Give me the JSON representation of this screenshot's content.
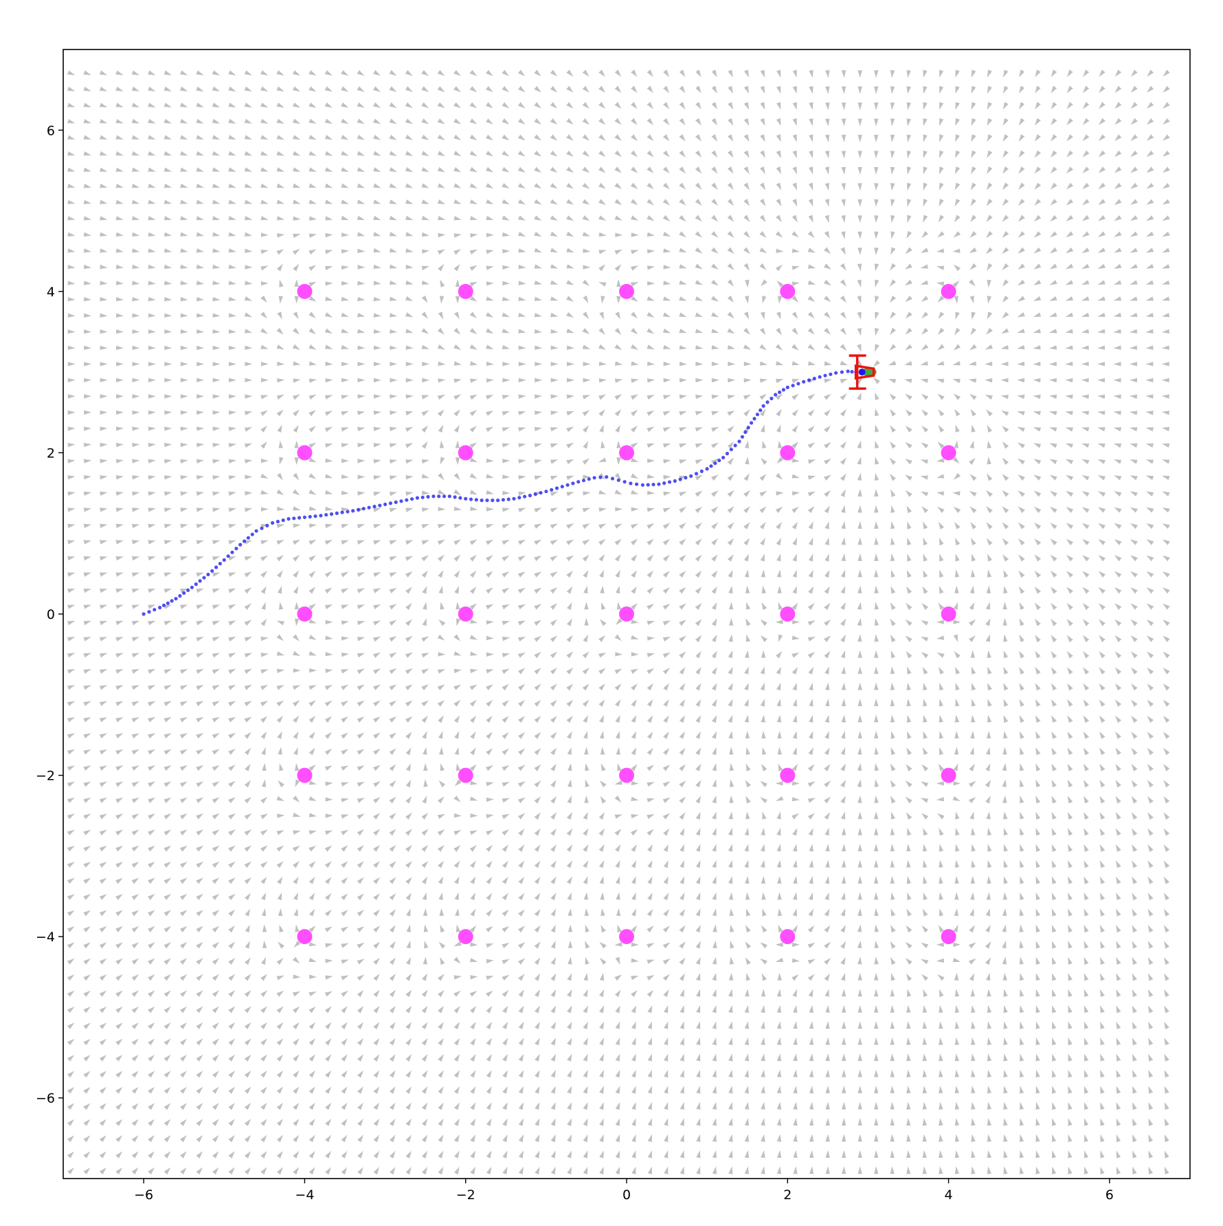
{
  "chart_data": {
    "type": "scatter",
    "title": "",
    "xlabel": "",
    "ylabel": "",
    "xlim": [
      -7,
      7
    ],
    "ylim": [
      -7,
      7
    ],
    "grid": false,
    "x_ticks": [
      -6,
      -4,
      -2,
      0,
      2,
      4,
      6
    ],
    "y_ticks": [
      -6,
      -4,
      -2,
      0,
      2,
      4,
      6
    ],
    "x_tick_labels": [
      "−6",
      "−4",
      "−2",
      "0",
      "2",
      "4",
      "6"
    ],
    "y_tick_labels": [
      "−6",
      "−4",
      "−2",
      "0",
      "2",
      "4",
      "6"
    ],
    "goal": {
      "x": 3.0,
      "y": 3.0
    },
    "obstacles": {
      "color": "#ff44ff",
      "points": [
        [
          -4,
          4
        ],
        [
          -2,
          4
        ],
        [
          0,
          4
        ],
        [
          2,
          4
        ],
        [
          4,
          4
        ],
        [
          -4,
          2
        ],
        [
          -2,
          2
        ],
        [
          0,
          2
        ],
        [
          2,
          2
        ],
        [
          4,
          2
        ],
        [
          -4,
          0
        ],
        [
          -2,
          0
        ],
        [
          0,
          0
        ],
        [
          2,
          0
        ],
        [
          4,
          0
        ],
        [
          -4,
          -2
        ],
        [
          -2,
          -2
        ],
        [
          0,
          -2
        ],
        [
          2,
          -2
        ],
        [
          4,
          -2
        ],
        [
          -4,
          -4
        ],
        [
          -2,
          -4
        ],
        [
          0,
          -4
        ],
        [
          2,
          -4
        ],
        [
          4,
          -4
        ]
      ]
    },
    "trajectory": {
      "color": "#2f2ff0",
      "points": [
        [
          -6.0,
          0.0
        ],
        [
          -5.8,
          0.08
        ],
        [
          -5.6,
          0.19
        ],
        [
          -5.4,
          0.33
        ],
        [
          -5.2,
          0.49
        ],
        [
          -5.0,
          0.67
        ],
        [
          -4.8,
          0.86
        ],
        [
          -4.6,
          1.03
        ],
        [
          -4.4,
          1.13
        ],
        [
          -4.2,
          1.18
        ],
        [
          -4.0,
          1.2
        ],
        [
          -3.8,
          1.22
        ],
        [
          -3.6,
          1.25
        ],
        [
          -3.4,
          1.28
        ],
        [
          -3.2,
          1.32
        ],
        [
          -3.0,
          1.36
        ],
        [
          -2.8,
          1.4
        ],
        [
          -2.6,
          1.44
        ],
        [
          -2.4,
          1.46
        ],
        [
          -2.2,
          1.46
        ],
        [
          -2.0,
          1.43
        ],
        [
          -1.8,
          1.41
        ],
        [
          -1.6,
          1.41
        ],
        [
          -1.4,
          1.43
        ],
        [
          -1.2,
          1.47
        ],
        [
          -1.0,
          1.52
        ],
        [
          -0.8,
          1.58
        ],
        [
          -0.6,
          1.64
        ],
        [
          -0.4,
          1.69
        ],
        [
          -0.25,
          1.7
        ],
        [
          -0.1,
          1.66
        ],
        [
          0.05,
          1.62
        ],
        [
          0.2,
          1.6
        ],
        [
          0.4,
          1.61
        ],
        [
          0.6,
          1.65
        ],
        [
          0.8,
          1.71
        ],
        [
          1.0,
          1.8
        ],
        [
          1.2,
          1.94
        ],
        [
          1.4,
          2.14
        ],
        [
          1.55,
          2.37
        ],
        [
          1.7,
          2.58
        ],
        [
          1.85,
          2.72
        ],
        [
          2.0,
          2.81
        ],
        [
          2.2,
          2.88
        ],
        [
          2.4,
          2.94
        ],
        [
          2.6,
          2.99
        ],
        [
          2.75,
          3.01
        ],
        [
          2.85,
          3.0
        ]
      ]
    },
    "robot": {
      "x": 2.95,
      "y": 3.0,
      "heading_deg": 0,
      "color": "#ee1111",
      "marker_color": "#44aa44"
    },
    "vector_field": {
      "color": "#c0c0c0",
      "spacing": 0.2,
      "rule": "attract to goal, repelled by obstacles"
    }
  }
}
